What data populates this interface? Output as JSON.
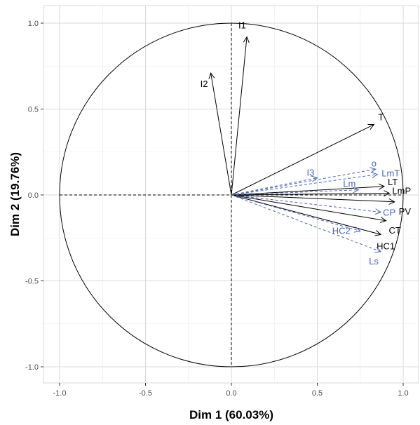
{
  "chart_data": {
    "type": "pca-variables-factor-map",
    "xlabel": "Dim 1 (60.03%)",
    "ylabel": "Dim 2 (19.76%)",
    "xlim": [
      -1.1,
      1.1
    ],
    "ylim": [
      -1.1,
      1.1
    ],
    "x_ticks": [
      "-1.0",
      "-0.5",
      "0.0",
      "0.5",
      "1.0"
    ],
    "y_ticks": [
      "-1.0",
      "-0.5",
      "0.0",
      "0.5",
      "1.0"
    ],
    "grid": true,
    "unit_circle": true,
    "series": [
      {
        "style": "solid",
        "color": "#000000",
        "vectors": [
          {
            "label": "I1",
            "x": 0.09,
            "y": 0.92
          },
          {
            "label": "I2",
            "x": -0.12,
            "y": 0.71
          },
          {
            "label": "T",
            "x": 0.83,
            "y": 0.41
          },
          {
            "label": "LT",
            "x": 0.89,
            "y": 0.05
          },
          {
            "label": "LmP",
            "x": 0.92,
            "y": 0.01
          },
          {
            "label": "PV",
            "x": 0.95,
            "y": -0.04
          },
          {
            "label": "CT",
            "x": 0.9,
            "y": -0.15
          },
          {
            "label": "HC1",
            "x": 0.87,
            "y": -0.23
          }
        ]
      },
      {
        "style": "dashed",
        "color": "#4a66b3",
        "vectors": [
          {
            "label": "I3",
            "x": 0.5,
            "y": 0.1
          },
          {
            "label": "o",
            "x": 0.84,
            "y": 0.15
          },
          {
            "label": "LmT",
            "x": 0.85,
            "y": 0.12
          },
          {
            "label": "Lm",
            "x": 0.74,
            "y": 0.03
          },
          {
            "label": "CP",
            "x": 0.87,
            "y": -0.1
          },
          {
            "label": "HC2",
            "x": 0.75,
            "y": -0.21
          },
          {
            "label": "Ls",
            "x": 0.87,
            "y": -0.33
          }
        ]
      }
    ]
  }
}
